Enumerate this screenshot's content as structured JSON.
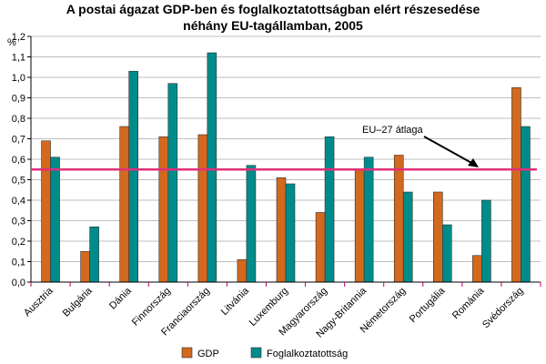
{
  "chart_data": {
    "type": "bar",
    "title_line1": "A postai ágazat GDP-ben és foglalkoztatottságban elért részesedése",
    "title_line2": "néhány EU-tagállamban, 2005",
    "ylabel": "%",
    "categories": [
      "Ausztria",
      "Bulgária",
      "Dánia",
      "Finnország",
      "Franciaország",
      "Litvánia",
      "Luxemburg",
      "Magyarország",
      "Nagy-Britannia",
      "Németország",
      "Portugália",
      "Románia",
      "Svédország"
    ],
    "series": [
      {
        "name": "GDP",
        "color": "#D2691E",
        "values": [
          0.69,
          0.15,
          0.76,
          0.71,
          0.72,
          0.11,
          0.51,
          0.34,
          0.55,
          0.62,
          0.44,
          0.13,
          0.95
        ]
      },
      {
        "name": "Foglalkoztatottság",
        "color": "#008B8B",
        "values": [
          0.61,
          0.27,
          1.03,
          0.97,
          1.12,
          0.57,
          0.48,
          0.71,
          0.61,
          0.44,
          0.28,
          0.4,
          0.76
        ]
      }
    ],
    "ylim": [
      0,
      1.2
    ],
    "yticks": [
      "0,0",
      "0,1",
      "0,2",
      "0,3",
      "0,4",
      "0,5",
      "0,6",
      "0,7",
      "0,8",
      "0,9",
      "1,0",
      "1,1",
      "1,2"
    ],
    "reference_line": {
      "label": "EU–27 átlaga",
      "value": 0.55,
      "color": "#E0307A"
    },
    "grid": true,
    "legend_position": "bottom"
  }
}
